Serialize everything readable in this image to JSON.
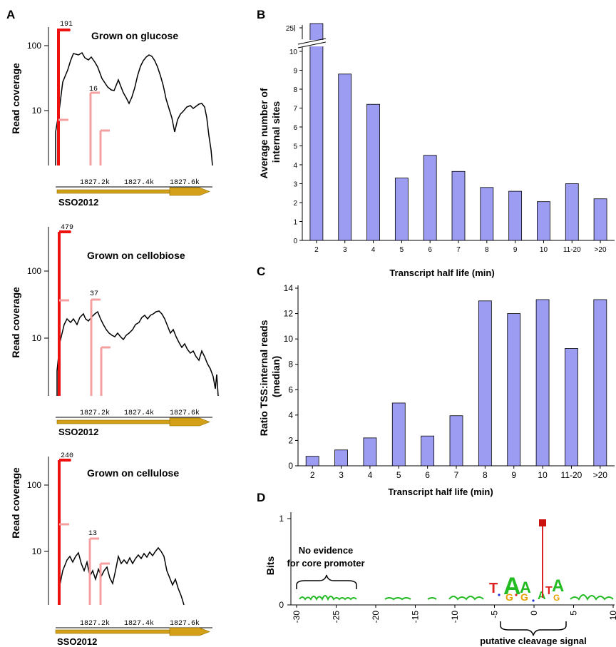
{
  "panel_a": {
    "letter": "A",
    "ylabel": "Read coverage",
    "ticks": [
      "100",
      "10"
    ],
    "locus_ticks": [
      "1827.2k",
      "1827.4k",
      "1827.6k"
    ],
    "gene": "SSO2012",
    "colors": {
      "primary_tss": "#ee1111",
      "internal_site": "#f4a0a0",
      "gene_arrow": "#d4a017",
      "coverage": "#000000"
    },
    "subpanels": [
      {
        "title": "Grown on glucose",
        "tss_count": "191",
        "internal_count": "16"
      },
      {
        "title": "Grown on cellobiose",
        "tss_count": "479",
        "internal_count": "37"
      },
      {
        "title": "Grown on cellulose",
        "tss_count": "240",
        "internal_count": "13"
      }
    ]
  },
  "chart_data": [
    {
      "panel": "B",
      "type": "bar",
      "xlabel": "Transcript half life (min)",
      "ylabel": "Average number of internal sites",
      "categories": [
        "2",
        "3",
        "4",
        "5",
        "6",
        "7",
        "8",
        "9",
        "10",
        "11-20",
        ">20"
      ],
      "values": [
        25,
        8.8,
        7.2,
        3.3,
        4.5,
        3.65,
        2.8,
        2.6,
        2.05,
        3.0,
        2.2
      ],
      "ylim": [
        0,
        10
      ],
      "axis_break": true,
      "yticks": [
        "0",
        "1",
        "2",
        "3",
        "4",
        "5",
        "6",
        "7",
        "8",
        "9",
        "10"
      ],
      "break_tick": "25",
      "bar_color": "#9c9cf2"
    },
    {
      "panel": "C",
      "type": "bar",
      "xlabel": "Transcript half life (min)",
      "ylabel": "Ratio TSS:internal reads (median)",
      "categories": [
        "2",
        "3",
        "4",
        "5",
        "6",
        "7",
        "8",
        "9",
        "10",
        "11-20",
        ">20"
      ],
      "values": [
        0.75,
        1.25,
        2.2,
        4.95,
        2.35,
        3.95,
        13.0,
        12.0,
        13.1,
        9.25,
        13.1
      ],
      "ylim": [
        0,
        14
      ],
      "yticks": [
        "0",
        "2",
        "4",
        "6",
        "8",
        "10",
        "12",
        "14"
      ],
      "bar_color": "#9c9cf2"
    },
    {
      "panel": "D",
      "type": "sequence-logo",
      "ylabel": "Bits",
      "yticks": [
        "0",
        "1"
      ],
      "xticks": [
        "-30",
        "-25",
        "-20",
        "-15",
        "-10",
        "-5",
        "0",
        "5",
        "10"
      ],
      "annotation_left": [
        "No evidence",
        "for core promoter"
      ],
      "annotation_bottom": "putative cleavage signal",
      "letters": [
        "T",
        "A",
        "G",
        "A",
        "G",
        "A",
        "T",
        "A",
        "G"
      ],
      "cleavage_position": 1
    }
  ],
  "panel_letters": {
    "b": "B",
    "c": "C",
    "d": "D"
  }
}
